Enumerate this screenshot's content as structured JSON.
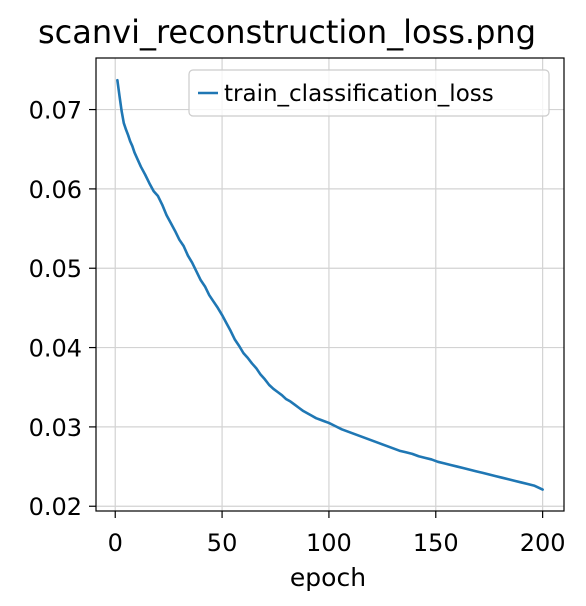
{
  "chart_data": {
    "type": "line",
    "title": "scanvi_reconstruction_loss.png",
    "xlabel": "epoch",
    "ylabel": "",
    "xlim": [
      -9,
      210
    ],
    "ylim": [
      0.0194,
      0.0765
    ],
    "xticks": [
      0,
      50,
      100,
      150,
      200
    ],
    "xtick_labels": [
      "0",
      "50",
      "100",
      "150",
      "200"
    ],
    "yticks": [
      0.02,
      0.03,
      0.04,
      0.05,
      0.06,
      0.07
    ],
    "ytick_labels": [
      "0.02",
      "0.03",
      "0.04",
      "0.05",
      "0.06",
      "0.07"
    ],
    "grid": true,
    "legend_position": "top-right",
    "series": [
      {
        "name": "train_classification_loss",
        "color": "#1f77b4",
        "x": [
          1,
          2,
          3,
          4,
          5,
          6,
          7,
          8,
          9,
          10,
          12,
          14,
          16,
          18,
          20,
          22,
          24,
          26,
          28,
          30,
          32,
          34,
          36,
          38,
          40,
          42,
          44,
          46,
          48,
          50,
          52,
          54,
          56,
          58,
          60,
          62,
          64,
          66,
          68,
          70,
          72,
          74,
          76,
          78,
          80,
          82,
          84,
          86,
          88,
          90,
          92,
          94,
          96,
          98,
          100,
          103,
          106,
          109,
          112,
          115,
          118,
          121,
          124,
          127,
          130,
          133,
          136,
          139,
          142,
          145,
          148,
          151,
          154,
          157,
          160,
          163,
          166,
          169,
          172,
          175,
          178,
          181,
          184,
          187,
          190,
          193,
          196,
          200
        ],
        "values": [
          0.0737,
          0.0717,
          0.0698,
          0.0683,
          0.0675,
          0.0668,
          0.066,
          0.0654,
          0.0646,
          0.064,
          0.0628,
          0.0618,
          0.0607,
          0.0597,
          0.0591,
          0.058,
          0.0567,
          0.0557,
          0.0547,
          0.0536,
          0.0528,
          0.0516,
          0.0507,
          0.0496,
          0.0485,
          0.0477,
          0.0466,
          0.0458,
          0.045,
          0.0441,
          0.0431,
          0.0421,
          0.041,
          0.0402,
          0.0393,
          0.0387,
          0.038,
          0.0374,
          0.0366,
          0.036,
          0.0353,
          0.0348,
          0.0344,
          0.034,
          0.0335,
          0.0332,
          0.0328,
          0.0324,
          0.032,
          0.0317,
          0.0314,
          0.0311,
          0.0309,
          0.0307,
          0.0305,
          0.0301,
          0.0297,
          0.0294,
          0.0291,
          0.0288,
          0.0285,
          0.0282,
          0.0279,
          0.0276,
          0.0273,
          0.027,
          0.0268,
          0.0266,
          0.0263,
          0.0261,
          0.0259,
          0.0256,
          0.0254,
          0.0252,
          0.025,
          0.0248,
          0.0246,
          0.0244,
          0.0242,
          0.024,
          0.0238,
          0.0236,
          0.0234,
          0.0232,
          0.023,
          0.0228,
          0.0226,
          0.0221
        ]
      }
    ]
  }
}
